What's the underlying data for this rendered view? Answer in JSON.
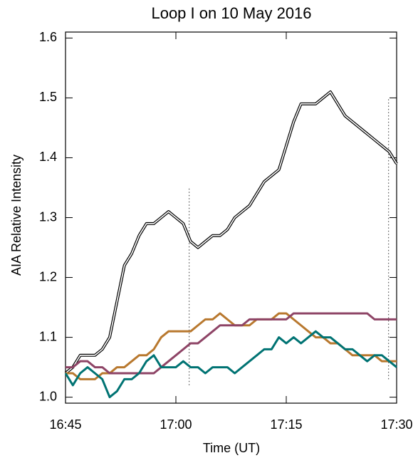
{
  "chart_data": {
    "type": "line",
    "title": "Loop I on 10 May 2016",
    "xlabel": "Time (UT)",
    "ylabel": "AIA Relative Intensity",
    "x": [
      0,
      1,
      2,
      3,
      4,
      5,
      6,
      7,
      8,
      9,
      10,
      11,
      12,
      13,
      14,
      15,
      16,
      17,
      18,
      19,
      20,
      21,
      22,
      23,
      24,
      25,
      26,
      27,
      28,
      29,
      30,
      31,
      32,
      33,
      34,
      35,
      36,
      37,
      38,
      39,
      40,
      41,
      42,
      43,
      44,
      45
    ],
    "xlim": [
      0,
      45
    ],
    "xticks": [
      {
        "value": 0,
        "label": "16:45"
      },
      {
        "value": 15,
        "label": "17:00"
      },
      {
        "value": 30,
        "label": "17:15"
      },
      {
        "value": 45,
        "label": "17:30"
      }
    ],
    "ylim": [
      0.99,
      1.61
    ],
    "yticks": [
      {
        "value": 1,
        "label": "1.0"
      },
      1.1,
      1.2,
      1.3,
      1.4,
      1.5,
      1.6
    ],
    "series": [
      {
        "color": "#000000",
        "values": [
          1.04,
          1.05,
          1.07,
          1.07,
          1.07,
          1.08,
          1.1,
          1.16,
          1.22,
          1.24,
          1.27,
          1.29,
          1.29,
          1.3,
          1.31,
          1.3,
          1.29,
          1.26,
          1.25,
          1.26,
          1.27,
          1.27,
          1.28,
          1.3,
          1.31,
          1.32,
          1.34,
          1.36,
          1.37,
          1.38,
          1.42,
          1.46,
          1.49,
          1.49,
          1.49,
          1.5,
          1.51,
          1.49,
          1.47,
          1.46,
          1.45,
          1.44,
          1.43,
          1.42,
          1.41,
          1.39
        ]
      },
      {
        "color": "#b8782e",
        "values": [
          1.04,
          1.04,
          1.03,
          1.03,
          1.03,
          1.04,
          1.04,
          1.05,
          1.05,
          1.06,
          1.07,
          1.07,
          1.08,
          1.1,
          1.11,
          1.11,
          1.11,
          1.11,
          1.12,
          1.13,
          1.13,
          1.14,
          1.13,
          1.12,
          1.12,
          1.12,
          1.13,
          1.13,
          1.13,
          1.14,
          1.14,
          1.13,
          1.12,
          1.11,
          1.1,
          1.1,
          1.09,
          1.09,
          1.08,
          1.07,
          1.07,
          1.07,
          1.07,
          1.06,
          1.06,
          1.06
        ]
      },
      {
        "color": "#8e4466",
        "values": [
          1.05,
          1.05,
          1.06,
          1.06,
          1.05,
          1.05,
          1.04,
          1.04,
          1.04,
          1.04,
          1.04,
          1.04,
          1.04,
          1.05,
          1.06,
          1.07,
          1.08,
          1.09,
          1.09,
          1.1,
          1.11,
          1.12,
          1.12,
          1.12,
          1.12,
          1.13,
          1.13,
          1.13,
          1.13,
          1.13,
          1.13,
          1.14,
          1.14,
          1.14,
          1.14,
          1.14,
          1.14,
          1.14,
          1.14,
          1.14,
          1.14,
          1.14,
          1.13,
          1.13,
          1.13,
          1.13
        ]
      },
      {
        "color": "#007373",
        "values": [
          1.04,
          1.02,
          1.04,
          1.05,
          1.04,
          1.03,
          1.0,
          1.01,
          1.03,
          1.03,
          1.04,
          1.06,
          1.07,
          1.05,
          1.05,
          1.05,
          1.06,
          1.05,
          1.05,
          1.04,
          1.05,
          1.05,
          1.05,
          1.04,
          1.05,
          1.06,
          1.07,
          1.08,
          1.08,
          1.1,
          1.09,
          1.1,
          1.09,
          1.1,
          1.11,
          1.1,
          1.1,
          1.09,
          1.08,
          1.08,
          1.07,
          1.06,
          1.07,
          1.07,
          1.06,
          1.05
        ]
      }
    ],
    "vlines": [
      {
        "x": 16.8,
        "y": [
          1.02,
          1.35
        ]
      },
      {
        "x": 43.9,
        "y": [
          1.03,
          1.5
        ]
      }
    ]
  }
}
